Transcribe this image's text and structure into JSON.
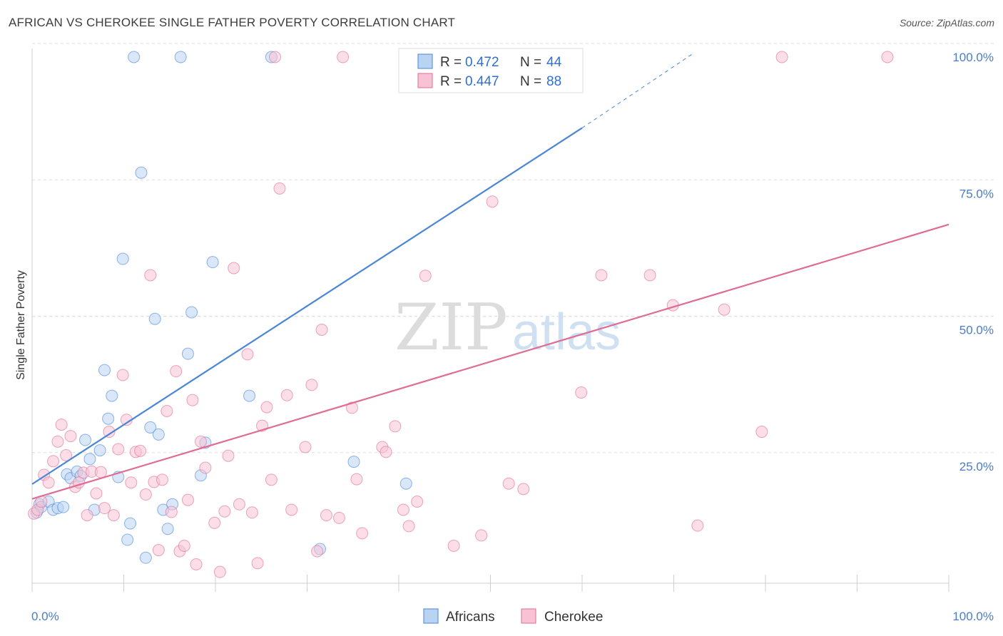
{
  "title": "AFRICAN VS CHEROKEE SINGLE FATHER POVERTY CORRELATION CHART",
  "source": "Source: ZipAtlas.com",
  "watermark": {
    "zip": "ZIP",
    "atlas": "atlas"
  },
  "colors": {
    "africans": "#4a86d8",
    "africans_fill": "#b9d3f3",
    "cherokee": "#e06c95",
    "cherokee_fill": "#f7c3d4",
    "tick": "#4a7cc9",
    "grid": "#dddddd"
  },
  "legend": {
    "rows": [
      {
        "r_label": "R =",
        "r_value": "0.472",
        "n_label": "N =",
        "n_value": "44"
      },
      {
        "r_label": "R =",
        "r_value": "0.447",
        "n_label": "N =",
        "n_value": "88"
      }
    ]
  },
  "bottom_legend": [
    "Africans",
    "Cherokee"
  ],
  "chart_data": {
    "type": "scatter",
    "title": "AFRICAN VS CHEROKEE SINGLE FATHER POVERTY CORRELATION CHART",
    "xlabel": "",
    "ylabel": "Single Father Poverty",
    "xlim": [
      0,
      100
    ],
    "ylim": [
      0,
      102
    ],
    "x_tick_labels": [
      "0.0%",
      "100.0%"
    ],
    "y_ticks": [
      25,
      50,
      75,
      100
    ],
    "y_tick_labels": [
      "25.0%",
      "50.0%",
      "75.0%",
      "100.0%"
    ],
    "grid": true,
    "legend_position": "top-center",
    "series": [
      {
        "name": "Africans",
        "r": 0.472,
        "n": 44,
        "trend": {
          "x0": 0,
          "y0": 21.7,
          "x1": 60,
          "y1": 87.0,
          "dash_x1": 72,
          "dash_y1": 100
        },
        "points": [
          [
            0.5,
            16.5
          ],
          [
            0.8,
            18.0
          ],
          [
            1.0,
            17.5
          ],
          [
            1.8,
            18.5
          ],
          [
            2.3,
            17.0
          ],
          [
            2.8,
            17.3
          ],
          [
            3.4,
            17.5
          ],
          [
            3.8,
            23.5
          ],
          [
            4.2,
            22.8
          ],
          [
            4.9,
            24.0
          ],
          [
            5.3,
            23.2
          ],
          [
            5.8,
            29.8
          ],
          [
            6.3,
            26.3
          ],
          [
            6.8,
            17.0
          ],
          [
            7.4,
            27.9
          ],
          [
            7.9,
            42.6
          ],
          [
            8.3,
            33.7
          ],
          [
            8.7,
            37.9
          ],
          [
            9.4,
            23.0
          ],
          [
            9.9,
            63.0
          ],
          [
            10.4,
            11.5
          ],
          [
            10.7,
            14.5
          ],
          [
            11.1,
            100.0
          ],
          [
            11.9,
            78.8
          ],
          [
            12.4,
            8.2
          ],
          [
            12.9,
            32.1
          ],
          [
            13.4,
            52.0
          ],
          [
            13.8,
            30.8
          ],
          [
            14.3,
            17.0
          ],
          [
            14.8,
            13.5
          ],
          [
            15.3,
            18.0
          ],
          [
            16.2,
            100.0
          ],
          [
            17.0,
            45.6
          ],
          [
            17.4,
            53.2
          ],
          [
            18.4,
            23.3
          ],
          [
            18.9,
            29.3
          ],
          [
            19.7,
            62.4
          ],
          [
            23.7,
            37.9
          ],
          [
            26.1,
            100.0
          ],
          [
            31.4,
            9.8
          ],
          [
            35.1,
            25.8
          ],
          [
            40.8,
            21.8
          ],
          [
            42.0,
            100.0
          ],
          [
            55.0,
            100.0
          ]
        ]
      },
      {
        "name": "Cherokee",
        "r": 0.447,
        "n": 88,
        "trend": {
          "x0": 0,
          "y0": 19.0,
          "x1": 100,
          "y1": 69.3
        },
        "points": [
          [
            0.2,
            16.3
          ],
          [
            0.6,
            17.0
          ],
          [
            1.0,
            18.5
          ],
          [
            1.3,
            23.4
          ],
          [
            1.8,
            22.0
          ],
          [
            2.3,
            25.9
          ],
          [
            2.8,
            29.5
          ],
          [
            3.2,
            32.6
          ],
          [
            3.7,
            27.0
          ],
          [
            4.2,
            30.5
          ],
          [
            4.7,
            21.2
          ],
          [
            5.1,
            22.0
          ],
          [
            5.6,
            23.8
          ],
          [
            6.0,
            16.0
          ],
          [
            6.5,
            24.0
          ],
          [
            7.0,
            20.0
          ],
          [
            7.5,
            23.9
          ],
          [
            7.9,
            17.3
          ],
          [
            8.4,
            31.3
          ],
          [
            8.9,
            16.0
          ],
          [
            9.4,
            28.1
          ],
          [
            9.9,
            41.7
          ],
          [
            10.3,
            33.5
          ],
          [
            10.8,
            22.0
          ],
          [
            11.3,
            27.6
          ],
          [
            11.8,
            27.8
          ],
          [
            12.4,
            19.8
          ],
          [
            12.9,
            60.0
          ],
          [
            13.3,
            22.1
          ],
          [
            13.8,
            9.6
          ],
          [
            14.2,
            22.5
          ],
          [
            14.7,
            35.1
          ],
          [
            15.2,
            16.6
          ],
          [
            15.7,
            42.4
          ],
          [
            16.1,
            9.4
          ],
          [
            16.6,
            10.4
          ],
          [
            17.0,
            18.8
          ],
          [
            17.5,
            37.1
          ],
          [
            17.9,
            7.0
          ],
          [
            18.4,
            29.5
          ],
          [
            18.9,
            24.7
          ],
          [
            19.9,
            14.6
          ],
          [
            20.5,
            5.6
          ],
          [
            21.0,
            16.7
          ],
          [
            21.4,
            26.9
          ],
          [
            22.0,
            61.3
          ],
          [
            22.6,
            18.0
          ],
          [
            23.5,
            45.5
          ],
          [
            24.0,
            16.5
          ],
          [
            24.6,
            7.2
          ],
          [
            25.1,
            32.4
          ],
          [
            25.6,
            35.8
          ],
          [
            26.1,
            22.5
          ],
          [
            26.5,
            100.0
          ],
          [
            27.0,
            75.9
          ],
          [
            27.8,
            38.0
          ],
          [
            28.3,
            17.0
          ],
          [
            29.8,
            28.5
          ],
          [
            30.5,
            39.9
          ],
          [
            31.1,
            9.4
          ],
          [
            31.6,
            50.0
          ],
          [
            32.1,
            16.0
          ],
          [
            33.5,
            15.5
          ],
          [
            33.9,
            100.0
          ],
          [
            34.9,
            35.7
          ],
          [
            35.4,
            22.6
          ],
          [
            36.0,
            12.7
          ],
          [
            38.2,
            28.5
          ],
          [
            38.6,
            27.6
          ],
          [
            39.6,
            32.3
          ],
          [
            40.5,
            17.0
          ],
          [
            41.1,
            14.0
          ],
          [
            42.0,
            18.5
          ],
          [
            42.9,
            59.9
          ],
          [
            46.0,
            10.4
          ],
          [
            47.9,
            100.0
          ],
          [
            49.0,
            12.3
          ],
          [
            50.2,
            73.5
          ],
          [
            52.0,
            21.8
          ],
          [
            53.6,
            20.8
          ],
          [
            59.9,
            38.5
          ],
          [
            62.1,
            60.0
          ],
          [
            67.4,
            60.0
          ],
          [
            69.9,
            54.5
          ],
          [
            72.6,
            14.1
          ],
          [
            75.5,
            53.7
          ],
          [
            79.6,
            31.3
          ],
          [
            81.8,
            100.0
          ],
          [
            93.3,
            100.0
          ]
        ]
      }
    ]
  }
}
